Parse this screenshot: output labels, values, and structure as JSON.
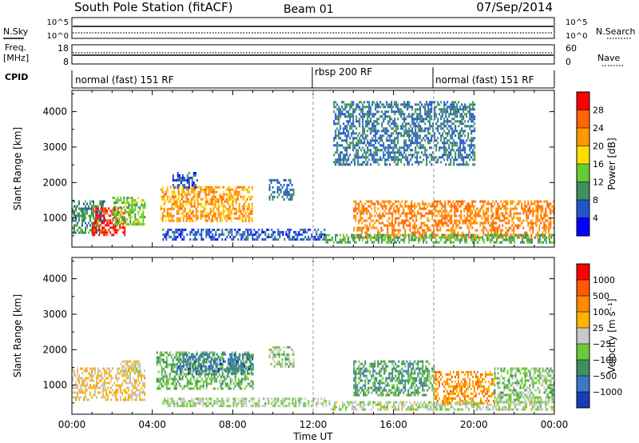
{
  "header": {
    "station": "South Pole Station (fitACF)",
    "beam": "Beam 01",
    "date": "07/Sep/2014"
  },
  "top_panels": {
    "nsky_label": "N.Sky",
    "nsearch_label": "N.Search",
    "nsky_ticks": [
      "10^5",
      "10^0"
    ],
    "nsearch_ticks": [
      "10^5",
      "10^0"
    ],
    "freq_label": "Freq.",
    "freq_unit": "[MHz]",
    "freq_ticks": [
      "18",
      "8"
    ],
    "nave_label": "Nave",
    "nave_ticks": [
      "60",
      "0"
    ],
    "cpid_label": "CPID",
    "cpid_segments": [
      {
        "start_hour": 0,
        "label": "normal (fast) 151 RF"
      },
      {
        "start_hour": 12,
        "label": "rbsp 200 RF"
      },
      {
        "start_hour": 18,
        "label": "normal (fast) 151 RF"
      }
    ]
  },
  "power_panel": {
    "ylabel": "Slant Range [km]",
    "colorbar_label": "Power [dB]",
    "colorbar_ticks": [
      "28",
      "24",
      "20",
      "16",
      "12",
      "8",
      "4"
    ],
    "colors": [
      "#0000ff",
      "#2255cc",
      "#3f8f5f",
      "#66cc33",
      "#ffdd00",
      "#ff9900",
      "#ff6600",
      "#ff0000"
    ]
  },
  "velocity_panel": {
    "ylabel": "Slant Range [km]",
    "colorbar_label": "Velocity [m s⁻¹]",
    "colorbar_ticks": [
      "1000",
      "500",
      "100",
      "25",
      "−25",
      "−100",
      "−500",
      "−1000"
    ],
    "colors": [
      "#1a3cb4",
      "#3a78c8",
      "#3f8f5f",
      "#6fc83a",
      "#c8c8c8",
      "#ffb400",
      "#ff8c00",
      "#ff5a00",
      "#ff0000"
    ]
  },
  "x_axis": {
    "label": "Time UT",
    "ticks": [
      "00:00",
      "04:00",
      "08:00",
      "12:00",
      "16:00",
      "20:00",
      "00:00"
    ]
  },
  "chart_data": [
    {
      "type": "heatmap",
      "title": "Power",
      "xlabel": "Time UT",
      "ylabel": "Slant Range [km]",
      "xlim": [
        0,
        24
      ],
      "ylim": [
        180,
        4600
      ],
      "yticks": [
        1000,
        2000,
        3000,
        4000
      ],
      "clim": [
        0,
        32
      ],
      "colorbar_label": "Power [dB]",
      "regions": [
        {
          "t": [
            0.0,
            1.6
          ],
          "range": [
            600,
            1500
          ],
          "value": 10
        },
        {
          "t": [
            1.0,
            2.6
          ],
          "range": [
            500,
            1300
          ],
          "value": 30
        },
        {
          "t": [
            2.0,
            3.6
          ],
          "range": [
            800,
            1600
          ],
          "value": 14
        },
        {
          "t": [
            4.4,
            9.0
          ],
          "range": [
            900,
            1900
          ],
          "value": 22
        },
        {
          "t": [
            4.5,
            12.6
          ],
          "range": [
            420,
            700
          ],
          "value": 6
        },
        {
          "t": [
            5.0,
            6.2
          ],
          "range": [
            1850,
            2300
          ],
          "value": 6
        },
        {
          "t": [
            9.8,
            11.0
          ],
          "range": [
            1500,
            2100
          ],
          "value": 8
        },
        {
          "t": [
            14.0,
            24.0
          ],
          "range": [
            450,
            1500
          ],
          "value": 24
        },
        {
          "t": [
            12.6,
            24.0
          ],
          "range": [
            300,
            550
          ],
          "value": 12
        },
        {
          "t": [
            13.0,
            20.0
          ],
          "range": [
            2500,
            4300
          ],
          "value": 8
        }
      ]
    },
    {
      "type": "heatmap",
      "title": "Velocity",
      "xlabel": "Time UT",
      "ylabel": "Slant Range [km]",
      "xlim": [
        0,
        24
      ],
      "ylim": [
        180,
        4600
      ],
      "yticks": [
        1000,
        2000,
        3000,
        4000
      ],
      "clim": [
        -1000,
        1000
      ],
      "colorbar_label": "Velocity [m s⁻¹]",
      "regions": [
        {
          "t": [
            0.0,
            3.6
          ],
          "range": [
            600,
            1500
          ],
          "value": 120
        },
        {
          "t": [
            2.4,
            3.4
          ],
          "range": [
            1300,
            1700
          ],
          "value": 40
        },
        {
          "t": [
            4.2,
            9.0
          ],
          "range": [
            900,
            1950
          ],
          "value": -300
        },
        {
          "t": [
            5.2,
            9.0
          ],
          "range": [
            1300,
            1900
          ],
          "value": -600
        },
        {
          "t": [
            4.5,
            12.8
          ],
          "range": [
            420,
            650
          ],
          "value": -120
        },
        {
          "t": [
            9.8,
            11.0
          ],
          "range": [
            1500,
            2100
          ],
          "value": -150
        },
        {
          "t": [
            14.0,
            18.0
          ],
          "range": [
            700,
            1700
          ],
          "value": -400
        },
        {
          "t": [
            18.0,
            21.0
          ],
          "range": [
            500,
            1400
          ],
          "value": 400
        },
        {
          "t": [
            21.0,
            24.0
          ],
          "range": [
            500,
            1500
          ],
          "value": -200
        },
        {
          "t": [
            12.8,
            24.0
          ],
          "range": [
            300,
            550
          ],
          "value": -80
        }
      ]
    }
  ]
}
